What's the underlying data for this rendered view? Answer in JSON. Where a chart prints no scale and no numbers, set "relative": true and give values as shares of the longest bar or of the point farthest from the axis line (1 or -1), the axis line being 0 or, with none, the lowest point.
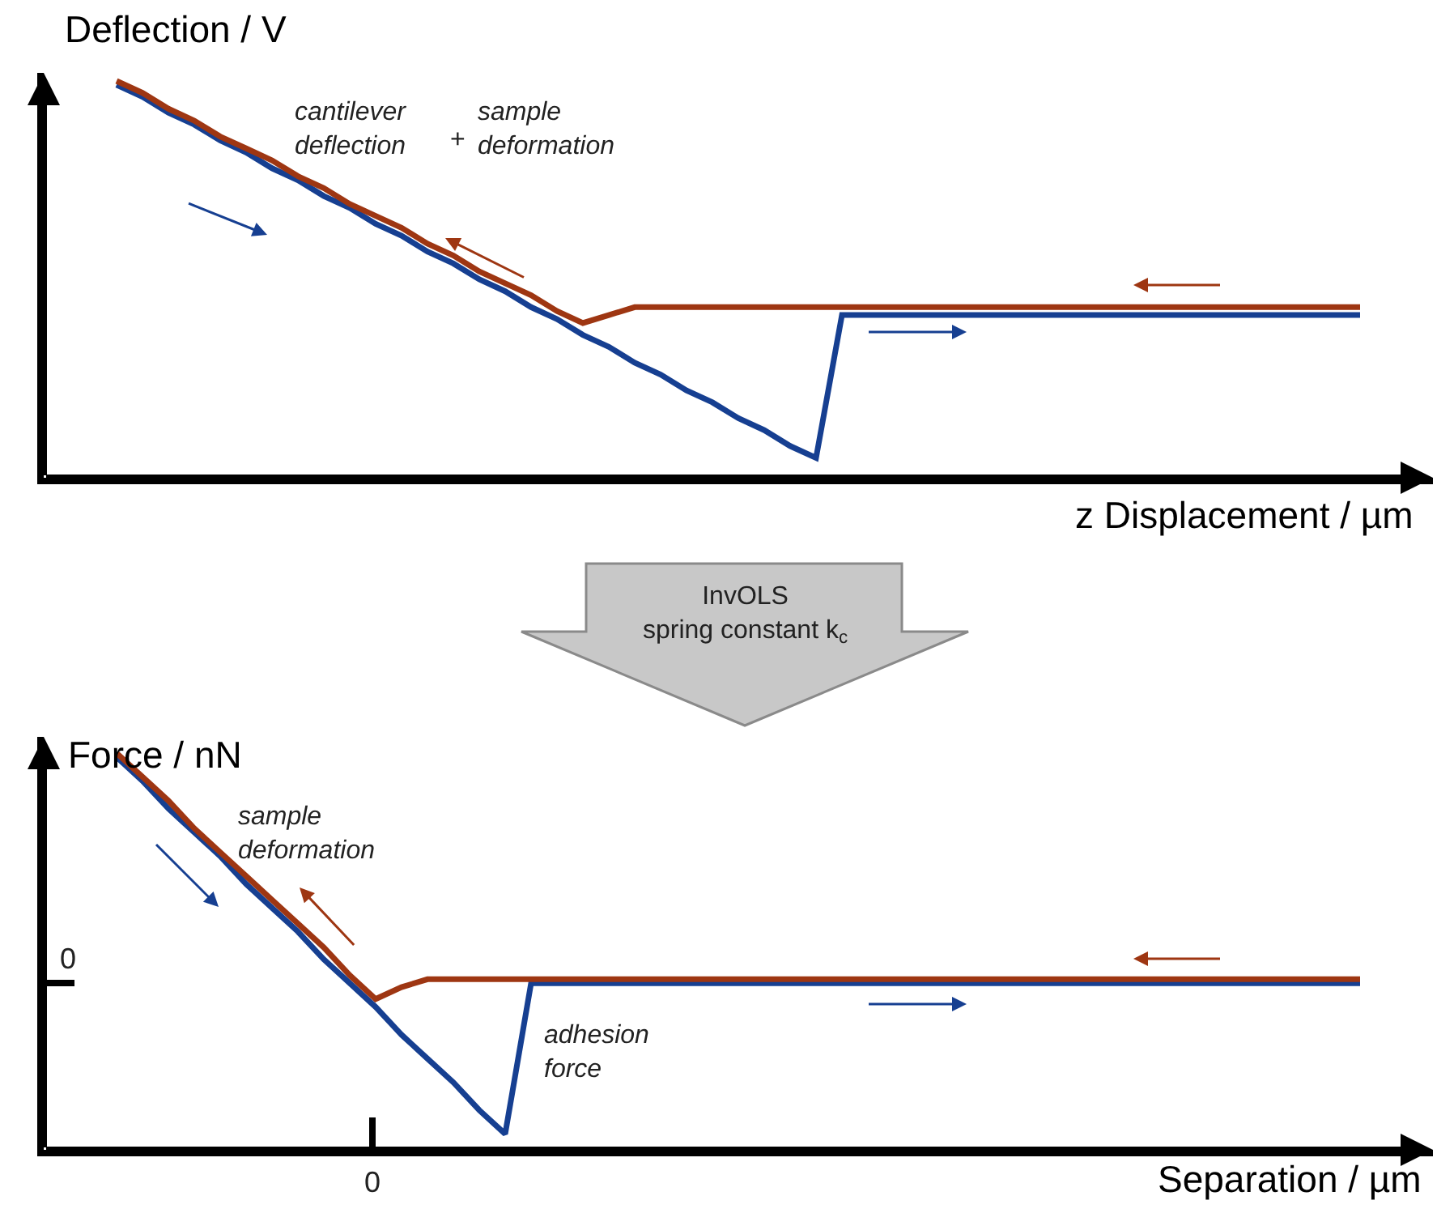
{
  "chart_data": [
    {
      "type": "line",
      "relative": true,
      "ylabel": "Deflection / V",
      "xlabel": "z Displacement / µm",
      "categories": [
        null,
        null,
        null,
        null,
        null,
        null,
        null,
        null,
        null,
        null,
        null,
        null,
        null,
        null,
        null,
        null,
        null,
        null,
        null,
        null,
        null,
        null,
        null,
        null,
        null,
        null,
        null,
        null,
        null,
        null,
        null,
        null,
        null,
        null,
        null,
        null,
        null,
        null,
        null,
        null,
        null,
        null,
        null,
        null,
        null,
        null,
        null,
        null,
        null
      ],
      "series": [
        {
          "color": "#163f91",
          "values": [
            0.99,
            0.96,
            0.92,
            0.89,
            0.85,
            0.82,
            0.78,
            0.75,
            0.71,
            0.68,
            0.64,
            0.61,
            0.57,
            0.54,
            0.5,
            0.47,
            0.43,
            0.4,
            0.36,
            0.33,
            0.29,
            0.26,
            0.22,
            0.19,
            0.15,
            0.12,
            0.08,
            0.05,
            0.41,
            0.41,
            0.41,
            0.41,
            0.41,
            0.41,
            0.41,
            0.41,
            0.41,
            0.41,
            0.41,
            0.41,
            0.41,
            0.41,
            0.41,
            0.41,
            0.41,
            0.41,
            0.41,
            0.41,
            0.41
          ]
        },
        {
          "color": "#9e3612",
          "values": [
            1.0,
            0.97,
            0.93,
            0.9,
            0.86,
            0.83,
            0.8,
            0.76,
            0.73,
            0.69,
            0.66,
            0.63,
            0.59,
            0.56,
            0.52,
            0.49,
            0.46,
            0.42,
            0.39,
            0.41,
            0.43,
            0.43,
            0.43,
            0.43,
            0.43,
            0.43,
            0.43,
            0.43,
            0.43,
            0.43,
            0.43,
            0.43,
            0.43,
            0.43,
            0.43,
            0.43,
            0.43,
            0.43,
            0.43,
            0.43,
            0.43,
            0.43,
            0.43,
            0.43,
            0.43,
            0.43,
            0.43,
            0.43,
            0.43
          ]
        }
      ],
      "annotations": [
        "cantilever\ndeflection",
        "+",
        "sample\ndeformation"
      ]
    },
    {
      "type": "line",
      "relative": true,
      "ylabel": "Force / nN",
      "xlabel": "Separation / µm",
      "categories": [
        null,
        null,
        null,
        null,
        null,
        null,
        null,
        null,
        null,
        null,
        null,
        null,
        null,
        null,
        null,
        null,
        null,
        null,
        null,
        null,
        null,
        null,
        null,
        null,
        null,
        null,
        null,
        null,
        null,
        null,
        null,
        null,
        null,
        null,
        null,
        null,
        null,
        null,
        null,
        null,
        null,
        null,
        null,
        null,
        null,
        null,
        null,
        null,
        null
      ],
      "series": [
        {
          "color": "#163f91",
          "values": [
            0.99,
            0.93,
            0.86,
            0.8,
            0.74,
            0.67,
            0.61,
            0.55,
            0.48,
            0.42,
            0.36,
            0.29,
            0.23,
            0.17,
            0.1,
            0.04,
            0.42,
            0.42,
            0.42,
            0.42,
            0.42,
            0.42,
            0.42,
            0.42,
            0.42,
            0.42,
            0.42,
            0.42,
            0.42,
            0.42,
            0.42,
            0.42,
            0.42,
            0.42,
            0.42,
            0.42,
            0.42,
            0.42,
            0.42,
            0.42,
            0.42,
            0.42,
            0.42,
            0.42,
            0.42,
            0.42,
            0.42,
            0.42,
            0.42
          ]
        },
        {
          "color": "#9e3612",
          "values": [
            1.0,
            0.94,
            0.88,
            0.81,
            0.75,
            0.69,
            0.63,
            0.57,
            0.51,
            0.44,
            0.38,
            0.41,
            0.43,
            0.43,
            0.43,
            0.43,
            0.43,
            0.43,
            0.43,
            0.43,
            0.43,
            0.43,
            0.43,
            0.43,
            0.43,
            0.43,
            0.43,
            0.43,
            0.43,
            0.43,
            0.43,
            0.43,
            0.43,
            0.43,
            0.43,
            0.43,
            0.43,
            0.43,
            0.43,
            0.43,
            0.43,
            0.43,
            0.43,
            0.43,
            0.43,
            0.43,
            0.43,
            0.43,
            0.43
          ]
        }
      ],
      "annotations": [
        "InvOLS\nspring constant k$_{c}$",
        "sample\ndeformation",
        "adhesion\nforce",
        "0",
        "0"
      ]
    }
  ]
}
